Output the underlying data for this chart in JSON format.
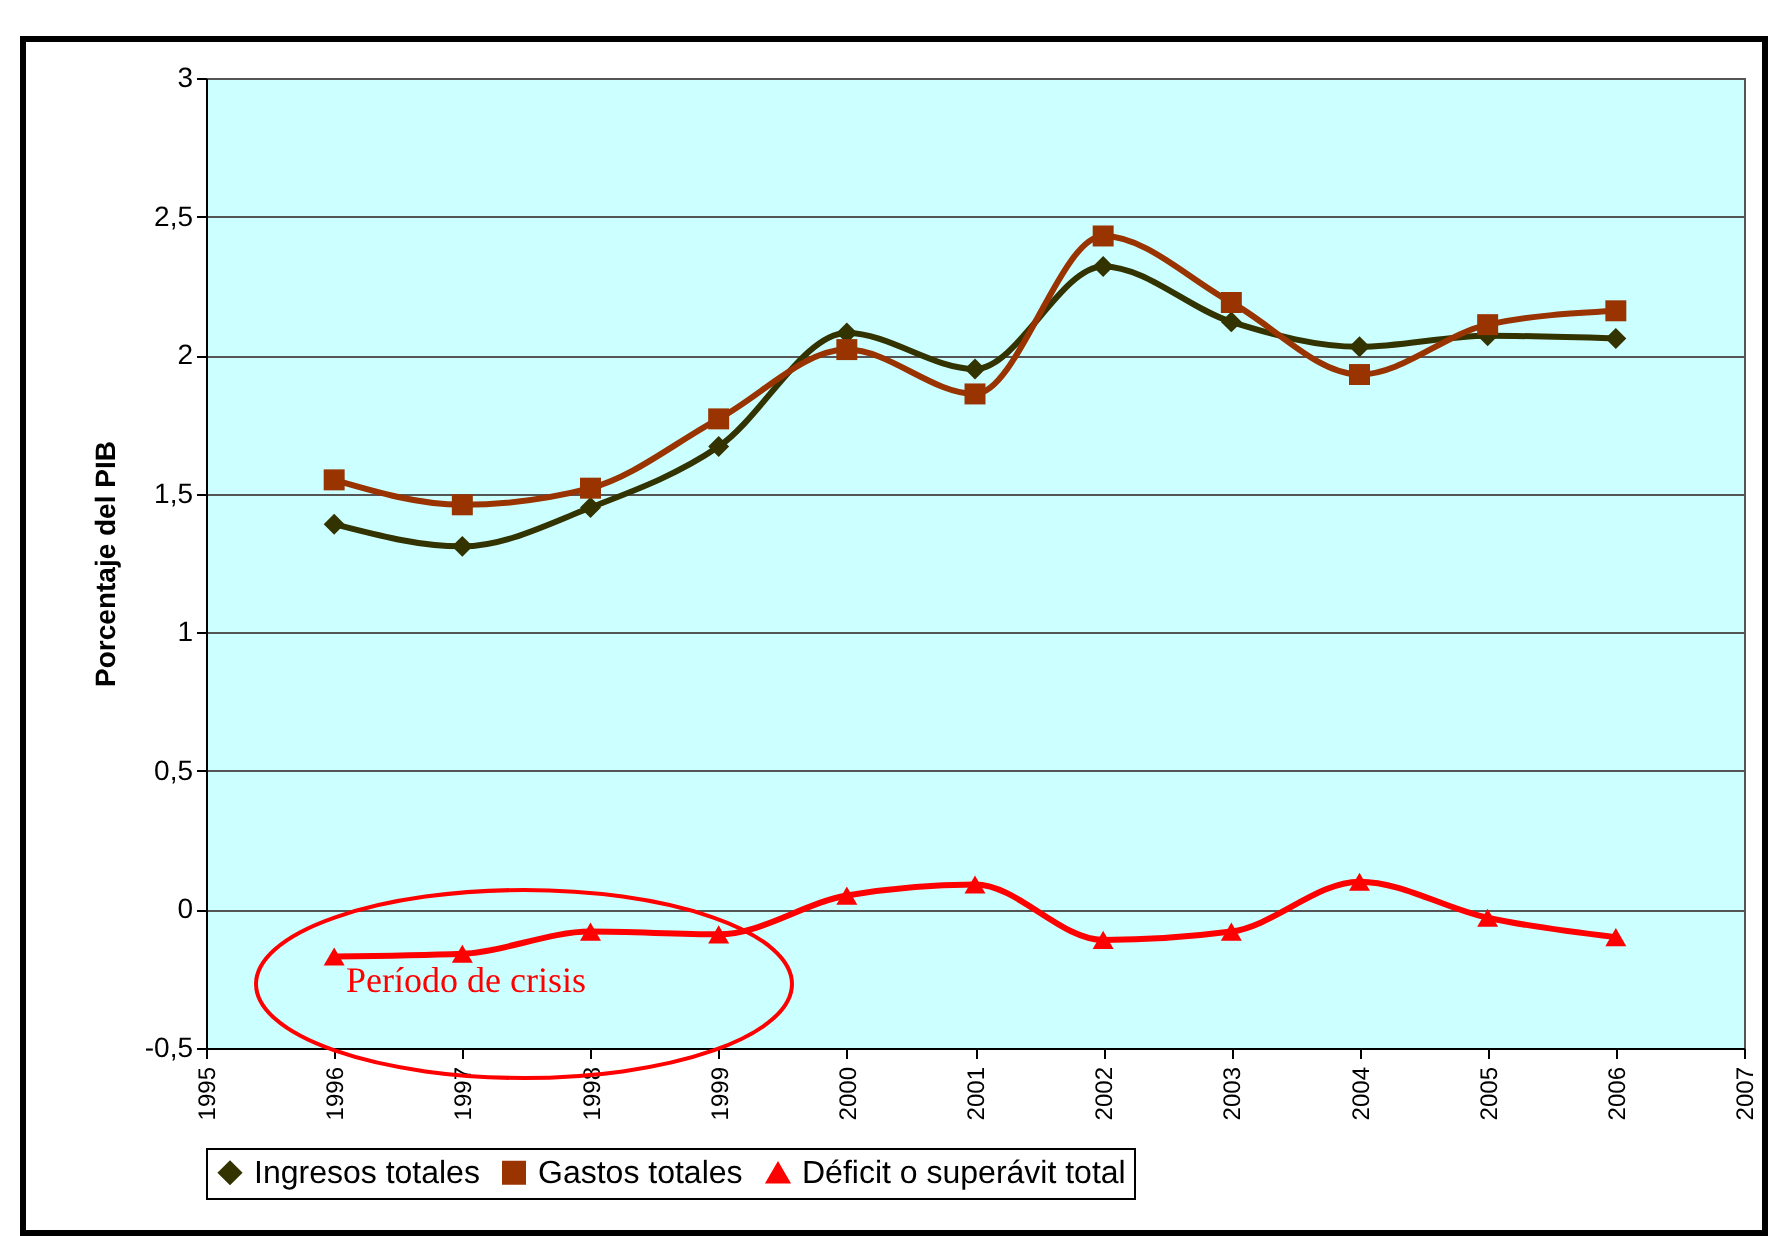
{
  "chart_data": {
    "type": "line",
    "ylabel": "Porcentaje del PIB",
    "x": [
      1996,
      1997,
      1998,
      1999,
      2000,
      2001,
      2002,
      2003,
      2004,
      2005,
      2006
    ],
    "xlim": [
      1995,
      2007
    ],
    "xticks": [
      1995,
      1996,
      1997,
      1998,
      1999,
      2000,
      2001,
      2002,
      2003,
      2004,
      2005,
      2006,
      2007
    ],
    "ylim": [
      -0.5,
      3
    ],
    "yticks": [
      {
        "value": -0.5,
        "label": "-0,5"
      },
      0,
      {
        "value": 0.5,
        "label": "0,5"
      },
      1,
      {
        "value": 1.5,
        "label": "1,5"
      },
      2,
      {
        "value": 2.5,
        "label": "2,5"
      },
      3
    ],
    "grid": "y",
    "legend": "bottom",
    "series": [
      {
        "name": "Ingresos totales",
        "color": "#333300",
        "marker": "diamond",
        "values": [
          1.39,
          1.31,
          1.45,
          1.67,
          2.08,
          1.95,
          2.32,
          2.12,
          2.03,
          2.07,
          2.06
        ]
      },
      {
        "name": "Gastos totales",
        "color": "#993300",
        "marker": "square",
        "values": [
          1.55,
          1.46,
          1.52,
          1.77,
          2.02,
          1.86,
          2.43,
          2.19,
          1.93,
          2.11,
          2.16
        ]
      },
      {
        "name": "Déficit o superávit total",
        "color": "#ff0000",
        "marker": "triangle",
        "values": [
          -0.17,
          -0.16,
          -0.08,
          -0.09,
          0.05,
          0.09,
          -0.11,
          -0.08,
          0.1,
          -0.03,
          -0.1
        ]
      }
    ],
    "annotations": [
      "Período de crisis"
    ]
  }
}
